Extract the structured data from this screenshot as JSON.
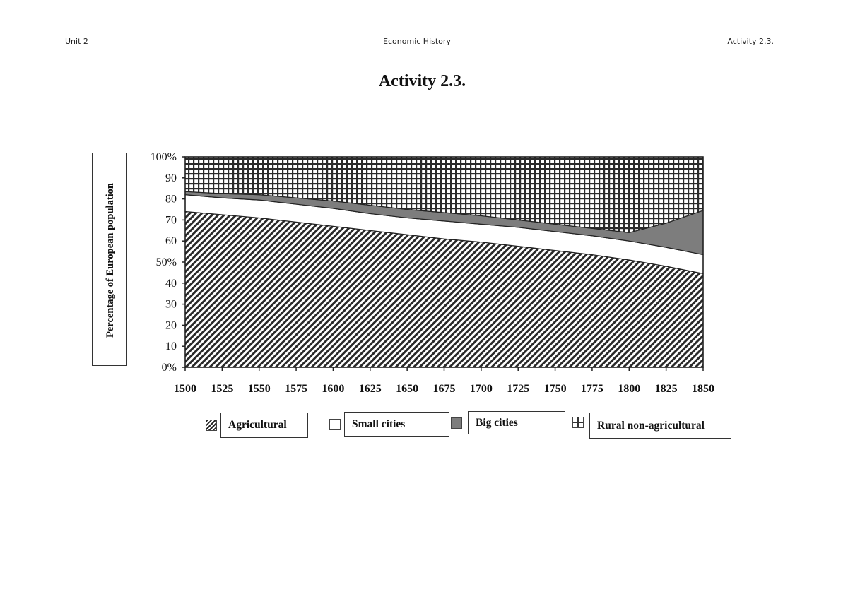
{
  "page_header": {
    "left": "Unit 2",
    "center": "Economic History",
    "right": "Activity 2.3."
  },
  "title": "Activity 2.3.",
  "chart_data": {
    "type": "area",
    "stacked": true,
    "title": "",
    "xlabel": "",
    "ylabel": "Percentage of European population",
    "ylim": [
      0,
      100
    ],
    "y_ticks": [
      "0%",
      "10",
      "20",
      "30",
      "40",
      "50%",
      "60",
      "70",
      "80",
      "90",
      "100%"
    ],
    "categories": [
      "1500",
      "1525",
      "1550",
      "1575",
      "1600",
      "1625",
      "1650",
      "1675",
      "1700",
      "1725",
      "1750",
      "1775",
      "1800",
      "1825",
      "1850"
    ],
    "series": [
      {
        "name": "Agricultural",
        "pattern": "diagonal-hatch",
        "values": [
          74,
          72.5,
          71,
          69,
          67,
          65,
          63,
          61,
          59.5,
          57.5,
          55.5,
          53.5,
          51,
          48,
          44.5
        ]
      },
      {
        "name": "Small cities",
        "pattern": "white",
        "values": [
          8,
          8,
          8.5,
          8.5,
          8.5,
          8,
          8,
          8.5,
          8.5,
          9,
          9,
          9,
          9,
          9,
          9
        ]
      },
      {
        "name": "Big cities",
        "pattern": "gray",
        "values": [
          1.5,
          2,
          2.5,
          3,
          3.5,
          4,
          4,
          4,
          4,
          3.5,
          3.5,
          3.5,
          4,
          11.5,
          21
        ]
      },
      {
        "name": "Rural non-agricultural",
        "pattern": "crosshatch",
        "values": [
          16.5,
          17.5,
          18,
          19.5,
          21,
          23,
          25,
          26.5,
          28,
          30,
          32,
          34,
          36,
          31.5,
          25.5
        ]
      }
    ],
    "grid": false,
    "legend_position": "bottom"
  },
  "legend": [
    {
      "label": "Agricultural"
    },
    {
      "label": "Small cities"
    },
    {
      "label": "Big cities"
    },
    {
      "label": "Rural non-agricultural"
    }
  ]
}
